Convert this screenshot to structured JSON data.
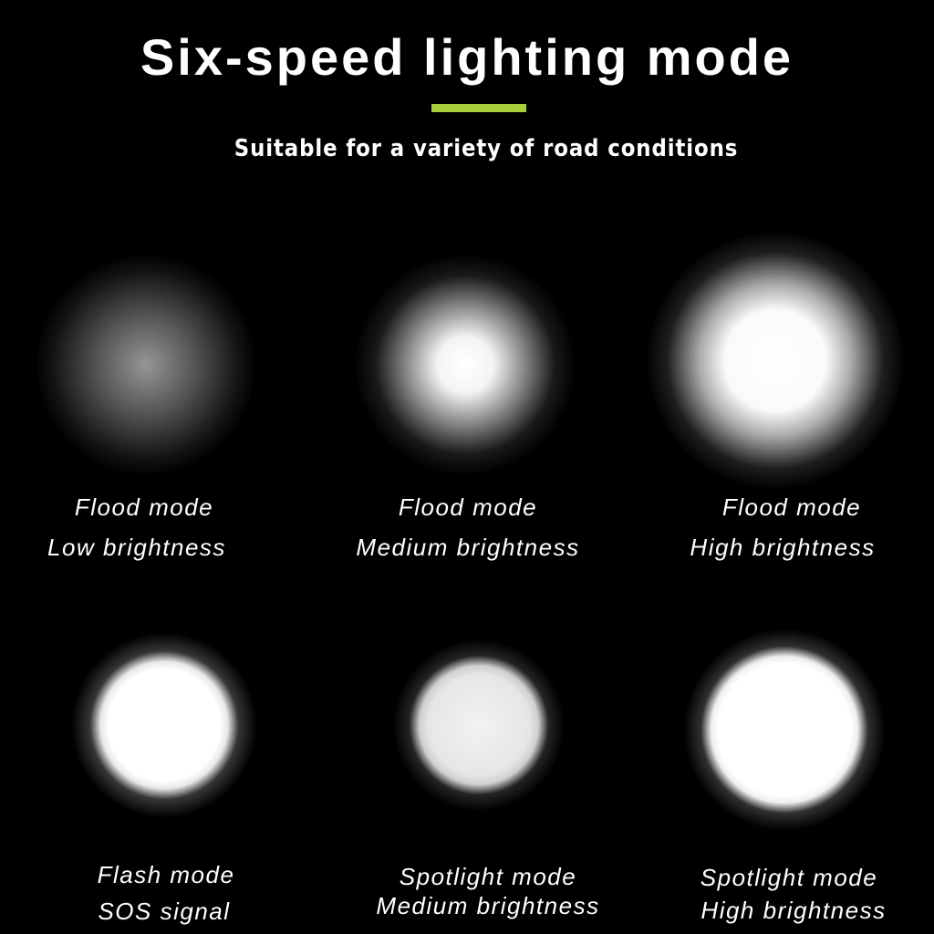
{
  "header": {
    "title": "Six-speed lighting mode",
    "subtitle": "Suitable for a variety of road conditions",
    "accent_color": "#a6cf3a"
  },
  "modes": [
    {
      "line1": "Flood mode",
      "line2": "Low brightness",
      "brightness": 0.3
    },
    {
      "line1": "Flood mode",
      "line2": "Medium brightness",
      "brightness": 0.6
    },
    {
      "line1": "Flood mode",
      "line2": "High brightness",
      "brightness": 0.85
    },
    {
      "line1": "Flash mode",
      "line2": "SOS signal",
      "brightness": 1.0
    },
    {
      "line1": "Spotlight mode",
      "line2": "Medium brightness",
      "brightness": 0.85
    },
    {
      "line1": "Spotlight mode",
      "line2": "High brightness",
      "brightness": 1.0
    }
  ]
}
